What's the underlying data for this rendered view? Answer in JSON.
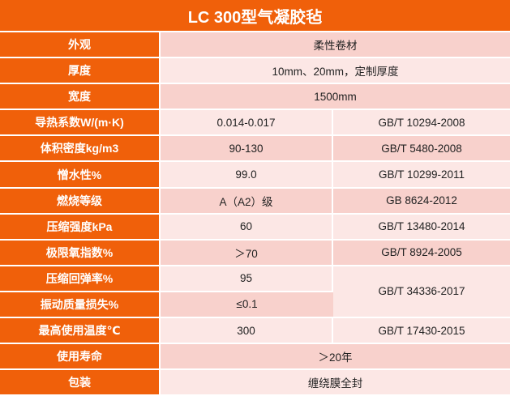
{
  "title": "LC 300型气凝胶毡",
  "colors": {
    "header": "#f0600a",
    "row_dark": "#f8d1cc",
    "row_light": "#fce7e5"
  },
  "rows": [
    {
      "label": "外观",
      "value": "柔性卷材"
    },
    {
      "label": "厚度",
      "value": "10mm、20mm，定制厚度"
    },
    {
      "label": "宽度",
      "value": "1500mm"
    },
    {
      "label": "导热系数W/(m·K)",
      "value": "0.014-0.017",
      "standard": "GB/T 10294-2008"
    },
    {
      "label": "体积密度kg/m3",
      "value": "90-130",
      "standard": "GB/T 5480-2008"
    },
    {
      "label": "憎水性%",
      "value": "99.0",
      "standard": "GB/T 10299-2011"
    },
    {
      "label": "燃烧等级",
      "value": "A（A2）级",
      "standard": "GB 8624-2012"
    },
    {
      "label": "压缩强度kPa",
      "value": "60",
      "standard": "GB/T 13480-2014"
    },
    {
      "label": "极限氧指数%",
      "value": "＞70",
      "standard": "GB/T 8924-2005"
    },
    {
      "label": "压缩回弹率%",
      "value": "95",
      "standard": "GB/T 34336-2017"
    },
    {
      "label": "振动质量损失%",
      "value": "≤0.1"
    },
    {
      "label": "最高使用温度℃",
      "value": "300",
      "standard": "GB/T 17430-2015"
    },
    {
      "label": "使用寿命",
      "value": "＞20年"
    },
    {
      "label": "包装",
      "value": "缠绕膜全封"
    }
  ]
}
